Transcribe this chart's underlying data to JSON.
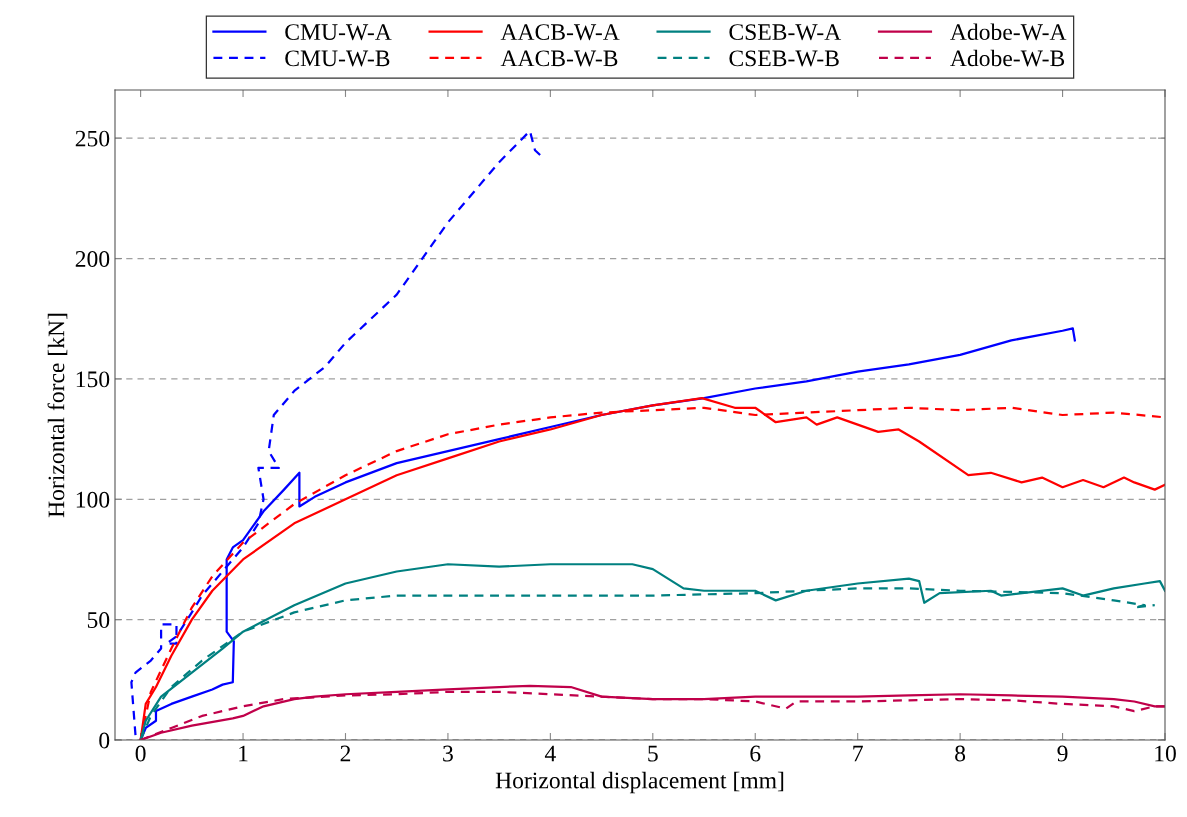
{
  "chart_data": {
    "type": "line",
    "xlabel": "Horizontal displacement [mm]",
    "ylabel": "Horizontal force [kN]",
    "xlim": [
      -0.25,
      10
    ],
    "ylim": [
      0,
      270
    ],
    "xticks": [
      0,
      1,
      2,
      3,
      4,
      5,
      6,
      7,
      8,
      9,
      10
    ],
    "yticks": [
      0,
      50,
      100,
      150,
      200,
      250
    ],
    "grid": "y",
    "legend": "top",
    "marker": "none",
    "series": [
      {
        "name": "CMU-W-A",
        "color": "#0000ff",
        "line_style": "solid",
        "x": [
          0,
          0.05,
          0.15,
          0.15,
          0.3,
          0.5,
          0.7,
          0.8,
          0.9,
          0.91,
          0.84,
          0.84,
          0.9,
          1.0,
          1.2,
          1.4,
          1.55,
          1.55,
          1.7,
          2.0,
          2.5,
          3.0,
          3.5,
          4.0,
          4.5,
          5.0,
          5.5,
          6.0,
          6.5,
          7.0,
          7.5,
          8.0,
          8.5,
          9.0,
          9.1,
          9.12
        ],
        "values": [
          0,
          5,
          8,
          12,
          15,
          18,
          21,
          23,
          24,
          41,
          45,
          75,
          80,
          83,
          95,
          104,
          111,
          97,
          101,
          107,
          115,
          120,
          125,
          130,
          135,
          139,
          142,
          146,
          149,
          153,
          156,
          160,
          166,
          170,
          171,
          166
        ]
      },
      {
        "name": "CMU-W-B",
        "color": "#0000ff",
        "line_style": "dashed",
        "x": [
          -0.05,
          -0.09,
          -0.05,
          0.1,
          0.2,
          0.2,
          0.35,
          0.35,
          0.25,
          0.35,
          0.5,
          0.6,
          0.8,
          1.0,
          1.15,
          1.2,
          1.15,
          1.35,
          1.25,
          1.3,
          1.5,
          1.8,
          2.0,
          2.5,
          3.0,
          3.5,
          3.8,
          3.85,
          3.9
        ],
        "values": [
          2,
          24,
          28,
          33,
          38,
          48,
          48,
          40,
          40,
          43,
          53,
          60,
          70,
          80,
          90,
          100,
          113,
          113,
          120,
          135,
          145,
          155,
          165,
          185,
          215,
          240,
          253,
          245,
          243
        ]
      },
      {
        "name": "AACB-W-A",
        "color": "#ff0000",
        "line_style": "solid",
        "x": [
          0,
          0.05,
          0.15,
          0.3,
          0.5,
          0.7,
          1.0,
          1.5,
          2.0,
          2.5,
          3.0,
          3.5,
          4.0,
          4.5,
          5.0,
          5.48,
          5.8,
          6.0,
          6.2,
          6.5,
          6.6,
          6.8,
          7.0,
          7.2,
          7.4,
          7.6,
          8.08,
          8.3,
          8.6,
          8.8,
          9.0,
          9.2,
          9.4,
          9.6,
          9.7,
          9.9,
          10.0
        ],
        "values": [
          0,
          15,
          22,
          35,
          50,
          62,
          75,
          90,
          100,
          110,
          117,
          124,
          129,
          135,
          139,
          142,
          138,
          138,
          132,
          134,
          131,
          134,
          131,
          128,
          129,
          124,
          110,
          111,
          107,
          109,
          105,
          108,
          105,
          109,
          107,
          104,
          106
        ]
      },
      {
        "name": "AACB-W-B",
        "color": "#ff0000",
        "line_style": "dashed",
        "x": [
          0,
          0.1,
          0.3,
          0.5,
          0.7,
          1.0,
          1.5,
          2.0,
          2.5,
          3.0,
          3.5,
          4.0,
          4.5,
          5.0,
          5.5,
          6.0,
          6.5,
          7.0,
          7.5,
          8.0,
          8.5,
          9.0,
          9.5,
          10.0
        ],
        "values": [
          0,
          20,
          38,
          55,
          68,
          82,
          98,
          110,
          120,
          127,
          131,
          134,
          136,
          137,
          138,
          135,
          136,
          137,
          138,
          137,
          138,
          135,
          136,
          134
        ]
      },
      {
        "name": "CSEB-W-A",
        "color": "#008080",
        "line_style": "solid",
        "x": [
          0,
          0.05,
          0.2,
          0.5,
          0.8,
          1.0,
          1.5,
          2.0,
          2.5,
          3.0,
          3.5,
          4.0,
          4.5,
          4.8,
          5.0,
          5.3,
          5.5,
          6.0,
          6.2,
          6.5,
          7.0,
          7.5,
          7.6,
          7.65,
          7.8,
          8.3,
          8.4,
          9.0,
          9.2,
          9.5,
          9.8,
          9.95,
          10.0
        ],
        "values": [
          0,
          8,
          18,
          28,
          38,
          45,
          56,
          65,
          70,
          73,
          72,
          73,
          73,
          73,
          71,
          63,
          62,
          62,
          58,
          62,
          65,
          67,
          66,
          57,
          61,
          62,
          60,
          63,
          60,
          63,
          65,
          66,
          62
        ]
      },
      {
        "name": "CSEB-W-B",
        "color": "#008080",
        "line_style": "dashed",
        "x": [
          0,
          0.1,
          0.3,
          0.6,
          1.0,
          1.5,
          2.0,
          2.5,
          3.0,
          4.0,
          5.0,
          6.0,
          6.5,
          7.0,
          7.5,
          8.0,
          9.0,
          9.5,
          9.8,
          9.7,
          9.9
        ],
        "values": [
          0,
          10,
          22,
          33,
          45,
          53,
          58,
          60,
          60,
          60,
          60,
          61,
          62,
          63,
          63,
          62,
          61,
          58,
          56,
          55,
          56
        ]
      },
      {
        "name": "Adobe-W-A",
        "color": "#c0004a",
        "line_style": "solid",
        "x": [
          0,
          0.2,
          0.5,
          0.9,
          1.0,
          1.2,
          1.5,
          1.7,
          2.0,
          2.5,
          3.0,
          3.5,
          3.8,
          4.2,
          4.5,
          5.0,
          5.5,
          6.0,
          6.5,
          7.0,
          7.5,
          8.0,
          8.5,
          9.0,
          9.5,
          9.7,
          9.9,
          10.0
        ],
        "values": [
          0,
          3,
          6,
          9,
          10,
          14,
          17,
          18,
          19,
          20,
          21,
          22,
          22.5,
          22,
          18,
          17,
          17,
          18,
          18,
          18,
          18.5,
          19,
          18.5,
          18,
          17,
          16,
          14,
          14
        ]
      },
      {
        "name": "Adobe-W-B",
        "color": "#c0004a",
        "line_style": "dashed",
        "x": [
          0,
          0.3,
          0.6,
          1.0,
          1.4,
          2.0,
          2.5,
          3.0,
          3.5,
          4.0,
          4.5,
          5.0,
          5.5,
          6.0,
          6.3,
          6.4,
          7.0,
          7.5,
          8.0,
          8.5,
          9.0,
          9.5,
          9.7,
          9.9,
          10.0
        ],
        "values": [
          0,
          5,
          10,
          14,
          17,
          18.5,
          19,
          20,
          20,
          19,
          18,
          17,
          17,
          16,
          13,
          16,
          16,
          16.5,
          17,
          16.5,
          15,
          14,
          12,
          14,
          14
        ]
      }
    ]
  }
}
